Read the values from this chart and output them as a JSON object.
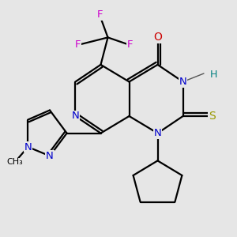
{
  "background_color": "#e6e6e6",
  "C": "#000000",
  "N": "#0000cc",
  "O": "#cc0000",
  "S": "#999900",
  "F": "#cc00cc",
  "H": "#008080"
}
